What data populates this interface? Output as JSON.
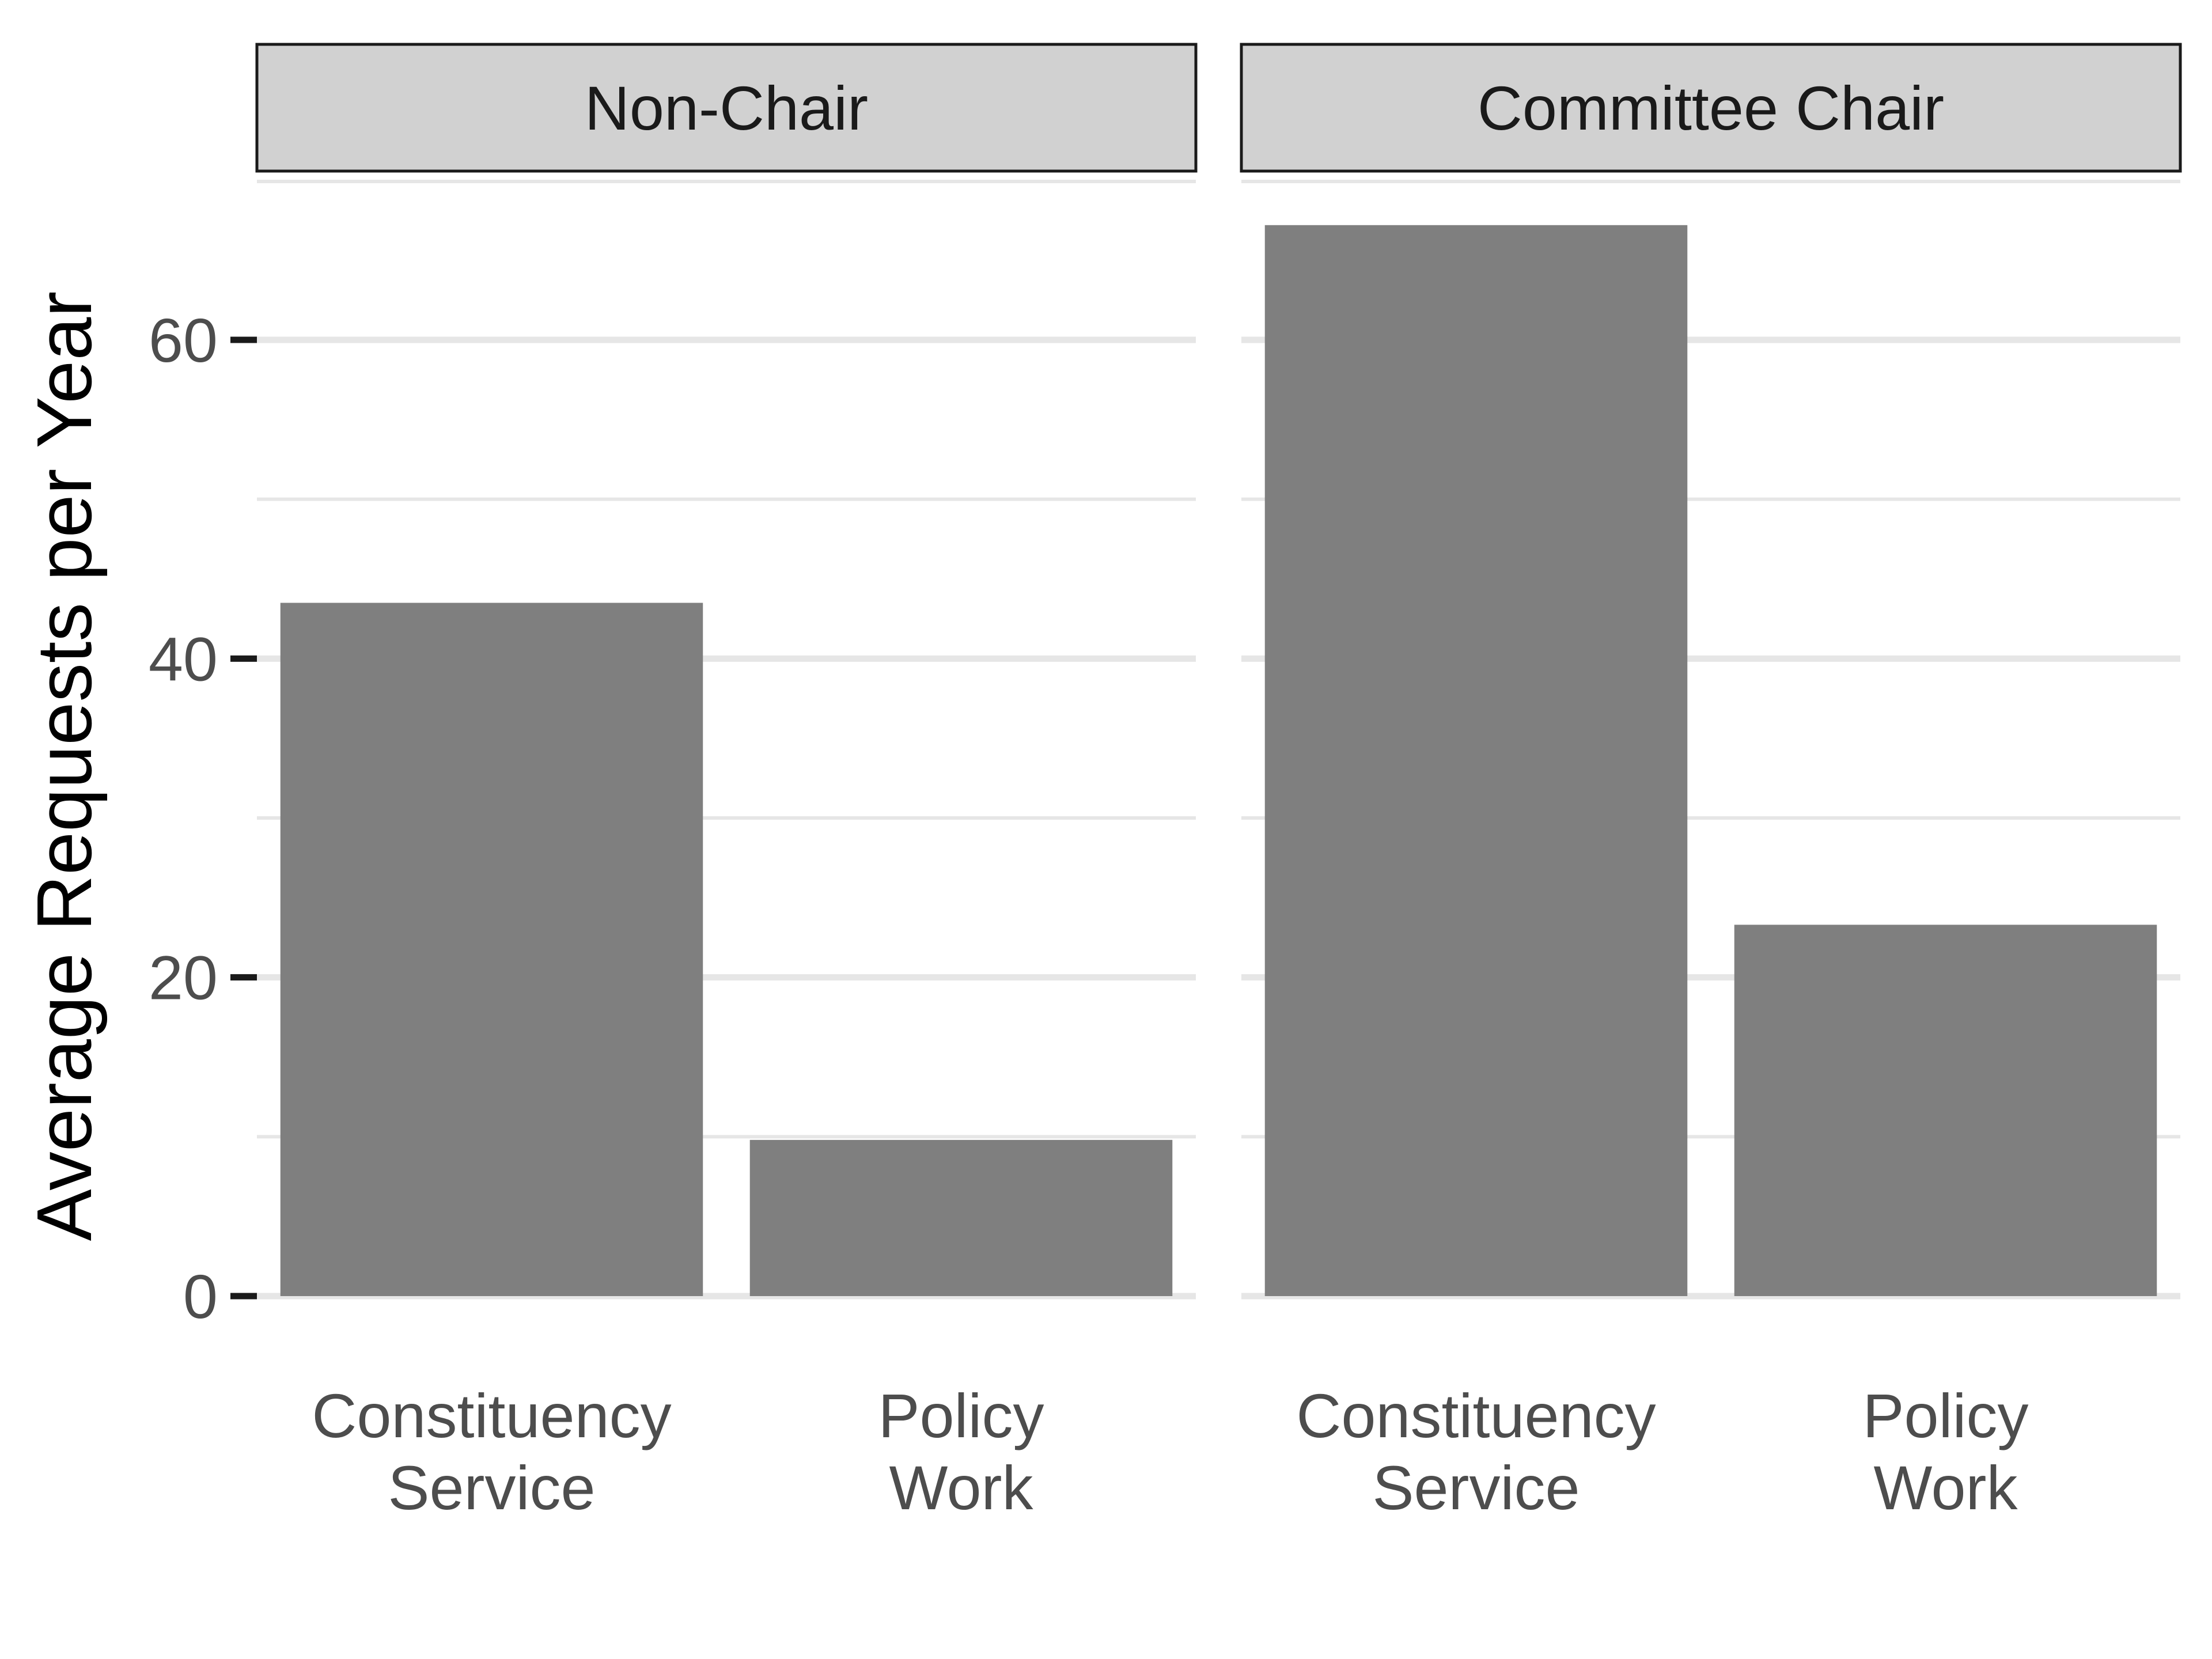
{
  "chart_data": {
    "type": "bar",
    "ylabel": "Average Requests per Year",
    "xlabel": "",
    "ylim": [
      0,
      70
    ],
    "yticks": [
      0,
      20,
      40,
      60
    ],
    "minor_grid": [
      10,
      30,
      50
    ],
    "grid": true,
    "bar_color": "#7f7f7f",
    "categories": [
      "Constituency Service",
      "Policy Work"
    ],
    "category_lines": [
      [
        "Constituency",
        "Service"
      ],
      [
        "Policy",
        "Work"
      ]
    ],
    "panels": [
      {
        "name": "Non-Chair",
        "values": [
          43.5,
          9.8
        ]
      },
      {
        "name": "Committee Chair",
        "values": [
          67.2,
          23.3
        ]
      }
    ]
  }
}
